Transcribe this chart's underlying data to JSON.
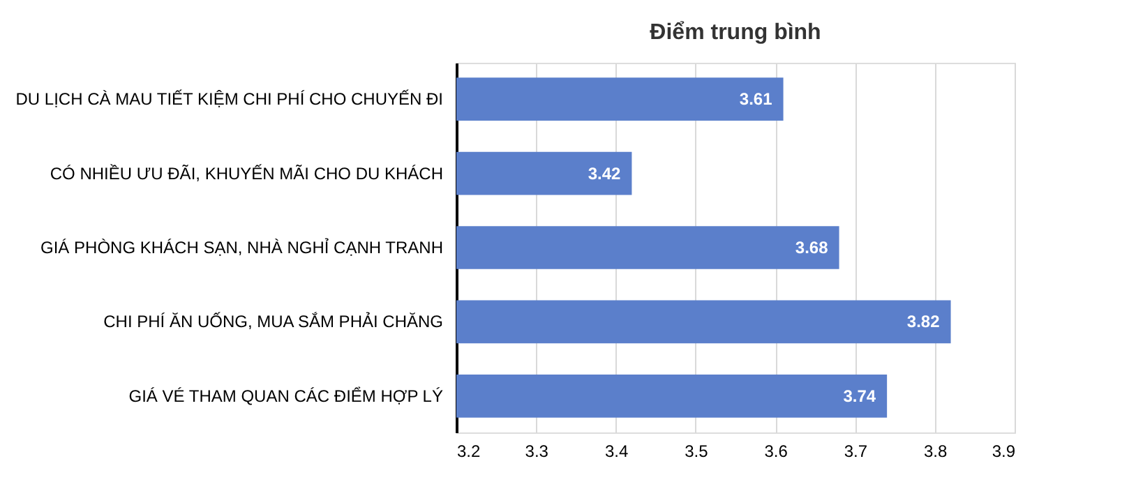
{
  "chart_data": {
    "type": "bar",
    "orientation": "horizontal",
    "title": "Điểm trung bình",
    "categories": [
      "DU LỊCH CÀ MAU TIẾT KIỆM CHI PHÍ CHO CHUYẾN ĐI",
      "CÓ NHIỀU ƯU ĐÃI, KHUYẾN MÃI CHO DU KHÁCH",
      "GIÁ PHÒNG KHÁCH SẠN, NHÀ NGHỈ CẠNH TRANH",
      "CHI PHÍ ĂN UỐNG, MUA SẮM PHẢI CHĂNG",
      "GIÁ VÉ THAM QUAN CÁC ĐIỂM HỢP LÝ"
    ],
    "values": [
      3.61,
      3.42,
      3.68,
      3.82,
      3.74
    ],
    "color": "#5b7fcb",
    "xlim": [
      3.2,
      3.9
    ],
    "xticks": [
      3.2,
      3.3,
      3.4,
      3.5,
      3.6,
      3.7,
      3.8,
      3.9
    ],
    "grid": "x",
    "data_labels": true
  }
}
